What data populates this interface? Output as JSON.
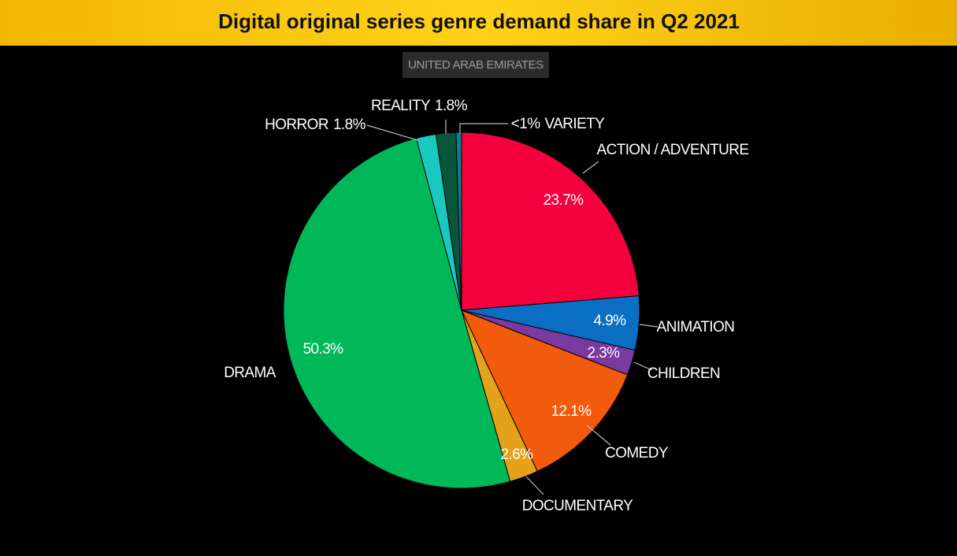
{
  "chart_data": {
    "type": "pie",
    "title": "Digital original series genre demand share in Q2 2021",
    "subtitle": "UNITED ARAB EMIRATES",
    "categories": [
      "ACTION / ADVENTURE",
      "ANIMATION",
      "CHILDREN",
      "COMEDY",
      "DOCUMENTARY",
      "DRAMA",
      "HORROR",
      "REALITY",
      "VARIETY"
    ],
    "values": [
      23.7,
      4.9,
      2.3,
      12.1,
      2.6,
      50.3,
      1.8,
      1.8,
      0.5
    ],
    "value_labels": [
      "23.7%",
      "4.9%",
      "2.3%",
      "12.1%",
      "2.6%",
      "50.3%",
      "1.8%",
      "1.8%",
      "<1%"
    ],
    "colors": [
      "#f5003f",
      "#0a6fc2",
      "#7a3aa0",
      "#f25a0c",
      "#e3a21a",
      "#00b85a",
      "#19c9c0",
      "#07553a",
      "#0b7f8a"
    ]
  }
}
